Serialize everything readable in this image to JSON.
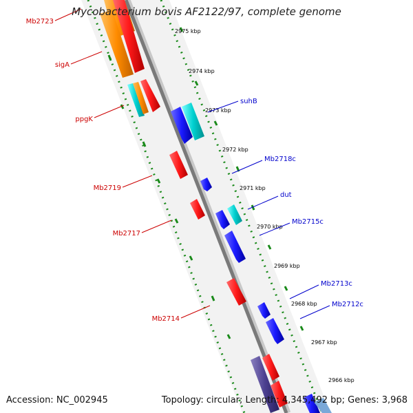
{
  "title": "Mycobacterium bovis AF2122/97, complete genome",
  "footer": {
    "accession": "Accession: NC_002945",
    "topology": "Topology: circular; Length: 4,345,492 bp; Genes: 3,968"
  },
  "ticks": [
    "2975 kbp",
    "2974 kbp",
    "2973 kbp",
    "2972 kbp",
    "2971 kbp",
    "2970 kbp",
    "2969 kbp",
    "2968 kbp",
    "2967 kbp",
    "2966 kbp"
  ],
  "left_labels": [
    "Mb2723",
    "sigA",
    "ppgK",
    "Mb2719",
    "Mb2717",
    "Mb2714"
  ],
  "right_labels": [
    "suhB",
    "Mb2718c",
    "dut",
    "Mb2715c",
    "Mb2713c",
    "Mb2712c"
  ],
  "colors": {
    "forward_cds": "#ff1a1a",
    "reverse_cds": "#1a1aff",
    "orange_feature": "#ff8c00",
    "cyan_feature": "#00d0d0",
    "purple_feature": "#4b3f8f",
    "backbone": "#808080",
    "gc_dots": "#008000",
    "left_label": "#cc0000",
    "right_label": "#0000cc"
  }
}
